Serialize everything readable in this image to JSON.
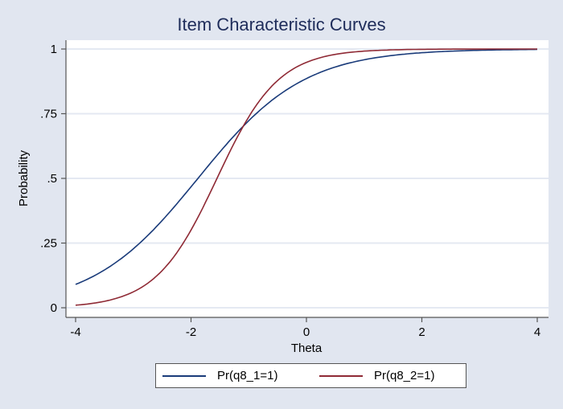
{
  "chart_data": {
    "type": "line",
    "title": "Item Characteristic Curves",
    "xlabel": "Theta",
    "ylabel": "Probability",
    "xlim": [
      -4,
      4
    ],
    "ylim": [
      0,
      1
    ],
    "xticks": [
      "-4",
      "-2",
      "0",
      "2",
      "4"
    ],
    "yticks": [
      "0",
      ".25",
      ".5",
      ".75",
      "1"
    ],
    "grid": "horizontal",
    "legend_position": "bottom",
    "x": [
      -4,
      -3.5,
      -3,
      -2.5,
      -2,
      -1.5,
      -1,
      -0.5,
      0,
      0.5,
      1,
      1.5,
      2,
      2.5,
      3,
      3.5,
      4
    ],
    "series": [
      {
        "name": "Pr(q8_1=1)",
        "color": "#1a3b7a",
        "model": {
          "a": 1.09,
          "b": -1.88
        },
        "values": [
          0.09,
          0.14,
          0.21,
          0.34,
          0.47,
          0.6,
          0.72,
          0.82,
          0.885,
          0.93,
          0.96,
          0.975,
          0.985,
          0.99,
          0.994,
          0.996,
          0.998
        ]
      },
      {
        "name": "Pr(q8_2=1)",
        "color": "#8f2a35",
        "model": {
          "a": 1.88,
          "b": -1.55
        },
        "values": [
          0.01,
          0.025,
          0.06,
          0.15,
          0.3,
          0.52,
          0.74,
          0.88,
          0.948,
          0.977,
          0.99,
          0.996,
          0.998,
          0.999,
          1.0,
          1.0,
          1.0
        ]
      }
    ]
  },
  "legend": {
    "items": [
      {
        "label": "Pr(q8_1=1)",
        "color": "#1a3b7a"
      },
      {
        "label": "Pr(q8_2=1)",
        "color": "#8f2a35"
      }
    ]
  }
}
